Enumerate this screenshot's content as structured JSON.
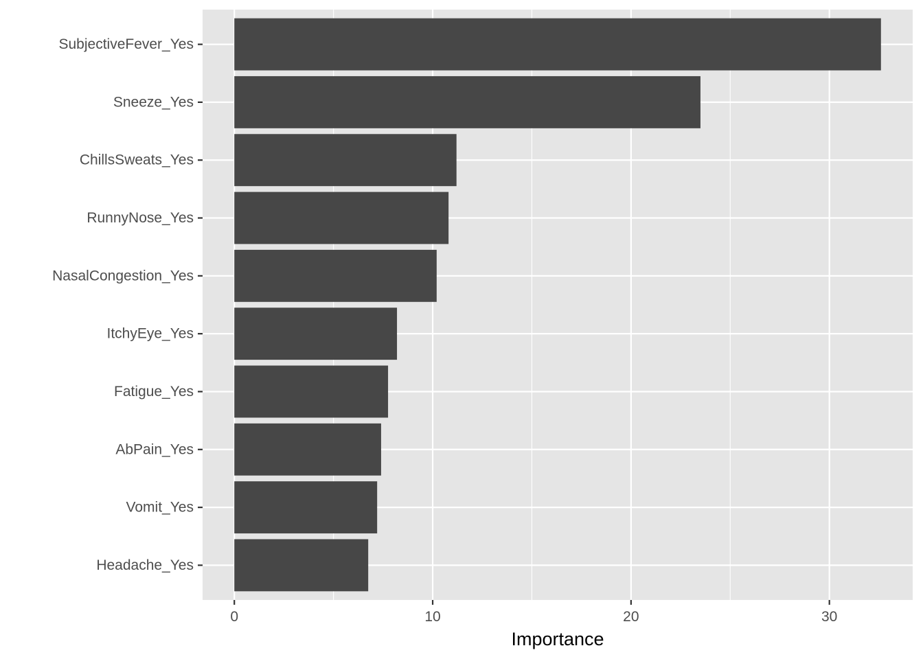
{
  "chart_data": {
    "type": "bar",
    "orientation": "horizontal",
    "categories": [
      "SubjectiveFever_Yes",
      "Sneeze_Yes",
      "ChillsSweats_Yes",
      "RunnyNose_Yes",
      "NasalCongestion_Yes",
      "ItchyEye_Yes",
      "Fatigue_Yes",
      "AbPain_Yes",
      "Vomit_Yes",
      "Headache_Yes"
    ],
    "values": [
      32.6,
      23.5,
      11.2,
      10.8,
      10.2,
      8.2,
      7.75,
      7.4,
      7.2,
      6.75
    ],
    "title": "",
    "xlabel": "Importance",
    "ylabel": "",
    "xlim": [
      -1.6,
      34.2
    ],
    "x_ticks": [
      "0",
      "10",
      "20",
      "30"
    ],
    "x_tick_values": [
      0,
      10,
      20,
      30
    ],
    "x_minor_values": [
      5,
      15,
      25
    ],
    "grid": true,
    "colors": {
      "bar": "#474747",
      "panel": "#e5e5e5",
      "grid": "#ffffff"
    }
  }
}
